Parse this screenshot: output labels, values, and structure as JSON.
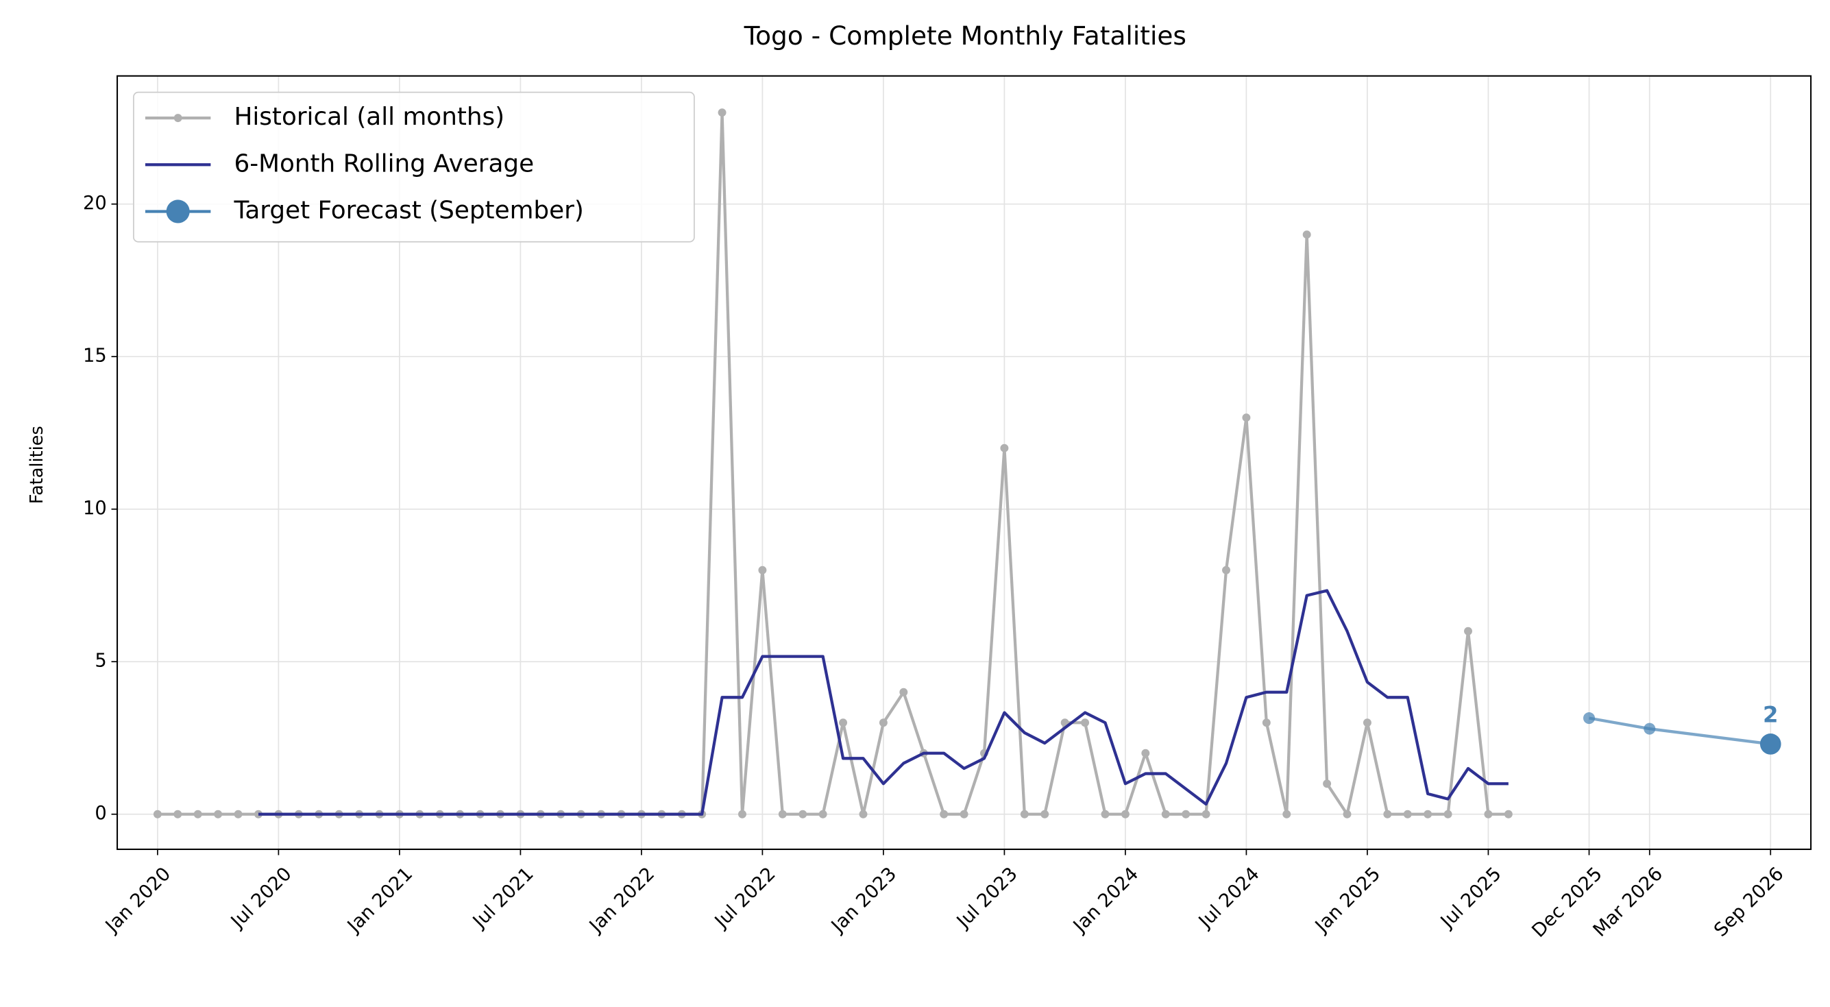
{
  "chart_data": {
    "type": "line",
    "title": "Togo - Complete Monthly Fatalities",
    "ylabel": "Fatalities",
    "xlim": [
      "2019-11",
      "2026-11"
    ],
    "xticks": [
      {
        "value": "2020-01",
        "label": "Jan 2020"
      },
      {
        "value": "2020-07",
        "label": "Jul 2020"
      },
      {
        "value": "2021-01",
        "label": "Jan 2021"
      },
      {
        "value": "2021-07",
        "label": "Jul 2021"
      },
      {
        "value": "2022-01",
        "label": "Jan 2022"
      },
      {
        "value": "2022-07",
        "label": "Jul 2022"
      },
      {
        "value": "2023-01",
        "label": "Jan 2023"
      },
      {
        "value": "2023-07",
        "label": "Jul 2023"
      },
      {
        "value": "2024-01",
        "label": "Jan 2024"
      },
      {
        "value": "2024-07",
        "label": "Jul 2024"
      },
      {
        "value": "2025-01",
        "label": "Jan 2025"
      },
      {
        "value": "2025-07",
        "label": "Jul 2025"
      },
      {
        "value": "2025-12",
        "label": "Dec 2025"
      },
      {
        "value": "2026-03",
        "label": "Mar 2026"
      },
      {
        "value": "2026-09",
        "label": "Sep 2026"
      }
    ],
    "ylim": [
      -1.15,
      24.2
    ],
    "yticks": [
      0,
      5,
      10,
      15,
      20
    ],
    "grid": true,
    "legend": "upper left",
    "series": [
      {
        "name": "Historical (all months)",
        "color": "#b0b0b0",
        "marker": true,
        "x": [
          "2020-01",
          "2020-02",
          "2020-03",
          "2020-04",
          "2020-05",
          "2020-06",
          "2020-07",
          "2020-08",
          "2020-09",
          "2020-10",
          "2020-11",
          "2020-12",
          "2021-01",
          "2021-02",
          "2021-03",
          "2021-04",
          "2021-05",
          "2021-06",
          "2021-07",
          "2021-08",
          "2021-09",
          "2021-10",
          "2021-11",
          "2021-12",
          "2022-01",
          "2022-02",
          "2022-03",
          "2022-04",
          "2022-05",
          "2022-06",
          "2022-07",
          "2022-08",
          "2022-09",
          "2022-10",
          "2022-11",
          "2022-12",
          "2023-01",
          "2023-02",
          "2023-03",
          "2023-04",
          "2023-05",
          "2023-06",
          "2023-07",
          "2023-08",
          "2023-09",
          "2023-10",
          "2023-11",
          "2023-12",
          "2024-01",
          "2024-02",
          "2024-03",
          "2024-04",
          "2024-05",
          "2024-06",
          "2024-07",
          "2024-08",
          "2024-09",
          "2024-10",
          "2024-11",
          "2024-12",
          "2025-01",
          "2025-02",
          "2025-03",
          "2025-04",
          "2025-05",
          "2025-06",
          "2025-07",
          "2025-08"
        ],
        "values": [
          0,
          0,
          0,
          0,
          0,
          0,
          0,
          0,
          0,
          0,
          0,
          0,
          0,
          0,
          0,
          0,
          0,
          0,
          0,
          0,
          0,
          0,
          0,
          0,
          0,
          0,
          0,
          0,
          23,
          0,
          8,
          0,
          0,
          0,
          3,
          0,
          3,
          4,
          2,
          0,
          0,
          2,
          12,
          0,
          0,
          3,
          3,
          0,
          0,
          2,
          0,
          0,
          0,
          8,
          13,
          3,
          0,
          19,
          1,
          0,
          3,
          0,
          0,
          0,
          0,
          6,
          0,
          0
        ]
      },
      {
        "name": "6-Month Rolling Average",
        "color": "#2e3192",
        "marker": false,
        "x": [
          "2020-01",
          "2020-02",
          "2020-03",
          "2020-04",
          "2020-05",
          "2020-06",
          "2020-07",
          "2020-08",
          "2020-09",
          "2020-10",
          "2020-11",
          "2020-12",
          "2021-01",
          "2021-02",
          "2021-03",
          "2021-04",
          "2021-05",
          "2021-06",
          "2021-07",
          "2021-08",
          "2021-09",
          "2021-10",
          "2021-11",
          "2021-12",
          "2022-01",
          "2022-02",
          "2022-03",
          "2022-04",
          "2022-05",
          "2022-06",
          "2022-07",
          "2022-08",
          "2022-09",
          "2022-10",
          "2022-11",
          "2022-12",
          "2023-01",
          "2023-02",
          "2023-03",
          "2023-04",
          "2023-05",
          "2023-06",
          "2023-07",
          "2023-08",
          "2023-09",
          "2023-10",
          "2023-11",
          "2023-12",
          "2024-01",
          "2024-02",
          "2024-03",
          "2024-04",
          "2024-05",
          "2024-06",
          "2024-07",
          "2024-08",
          "2024-09",
          "2024-10",
          "2024-11",
          "2024-12",
          "2025-01",
          "2025-02",
          "2025-03",
          "2025-04",
          "2025-05",
          "2025-06",
          "2025-07",
          "2025-08"
        ],
        "values": [
          null,
          null,
          null,
          null,
          null,
          0,
          0,
          0,
          0,
          0,
          0,
          0,
          0,
          0,
          0,
          0,
          0,
          0,
          0,
          0,
          0,
          0,
          0,
          0,
          0,
          0,
          0,
          0,
          3.83,
          3.83,
          5.17,
          5.17,
          5.17,
          5.17,
          1.83,
          1.83,
          1,
          1.67,
          2,
          2,
          1.5,
          1.83,
          3.33,
          2.67,
          2.33,
          2.83,
          3.33,
          3,
          1,
          1.33,
          1.33,
          0.83,
          0.33,
          1.67,
          3.83,
          4,
          4,
          7.17,
          7.33,
          6,
          4.33,
          3.83,
          3.83,
          0.67,
          0.5,
          1.5,
          1,
          1
        ]
      },
      {
        "name": "Target Forecast (September)",
        "color": "#4682b4",
        "marker": true,
        "x": [
          "2025-12",
          "2026-03",
          "2026-09"
        ],
        "values": [
          3.15,
          2.8,
          2.3
        ],
        "value_labels": [
          null,
          null,
          "2"
        ]
      }
    ]
  }
}
